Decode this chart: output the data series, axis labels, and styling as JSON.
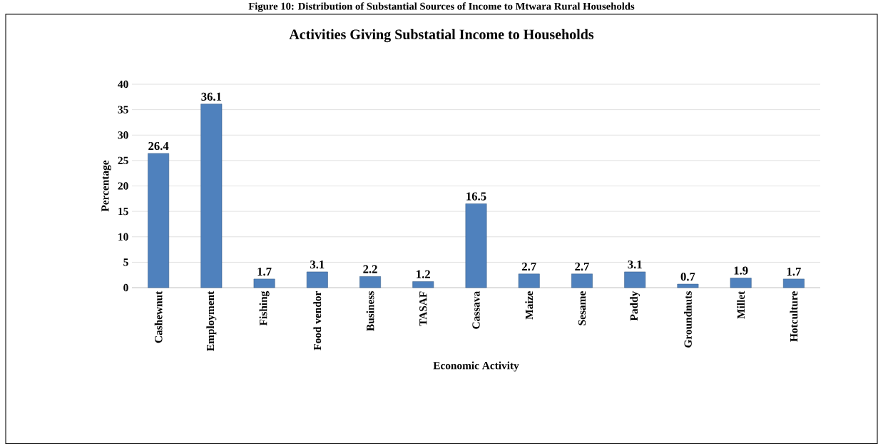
{
  "chart_data": {
    "type": "bar",
    "title": "Activities Giving Substatial Income to Households",
    "xlabel": "Economic Activity",
    "ylabel": "Percentage",
    "annotations": [
      "Figure 10: Distribution of Substantial Sources of Income to Mtwara Rural Households"
    ],
    "categories": [
      "Cashewnut",
      "Employment",
      "Fishing",
      "Food vendor",
      "Business",
      "TASAF",
      "Cassava",
      "Maize",
      "Sesame",
      "Paddy",
      "Groundnuts",
      "Millet",
      "Hotculture"
    ],
    "values": [
      26.4,
      36.1,
      1.7,
      3.1,
      2.2,
      1.2,
      16.5,
      2.7,
      2.7,
      3.1,
      0.7,
      1.9,
      1.7
    ],
    "color": "#4f81bd",
    "ylim": [
      0,
      40
    ],
    "yticks": [
      0,
      5,
      10,
      15,
      20,
      25,
      30,
      35,
      40
    ],
    "grid": "y",
    "data_labels": true
  }
}
